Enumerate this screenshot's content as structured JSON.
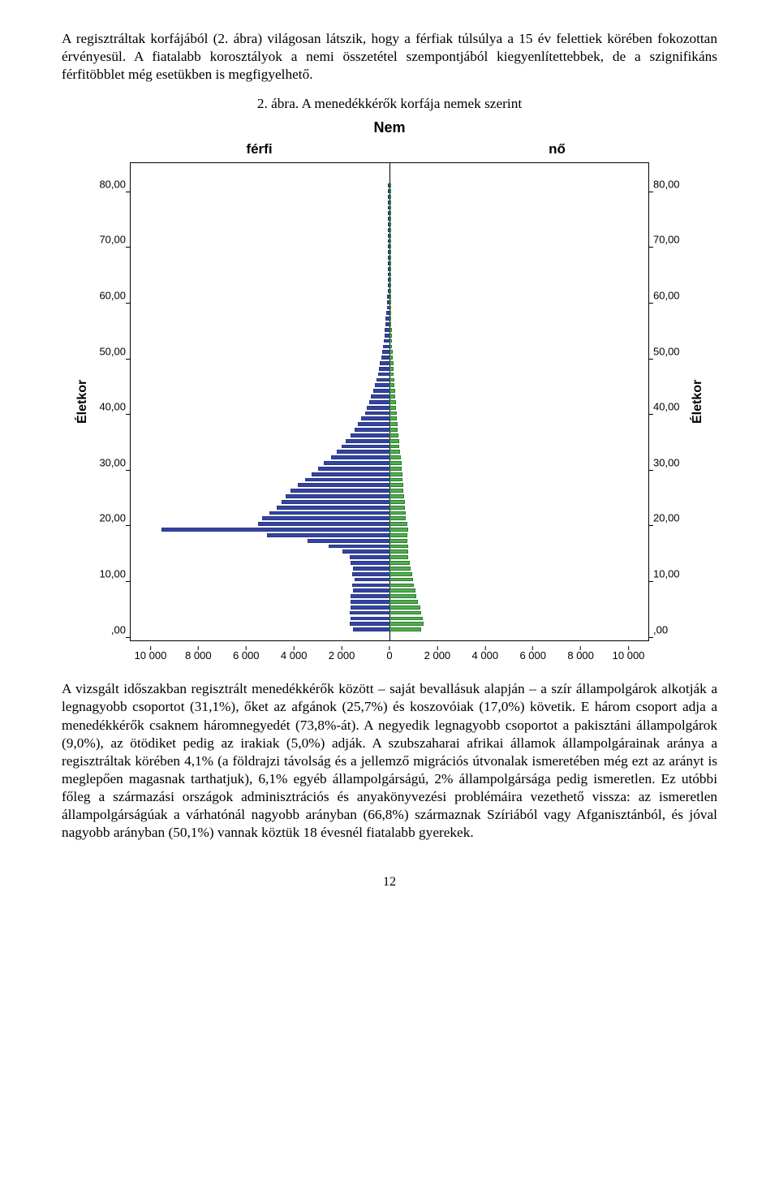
{
  "para1": "A regisztráltak korfájából (2. ábra) világosan látszik, hogy a férfiak túlsúlya a 15 év felettiek körében fokozottan érvényesül. A fiatalabb korosztályok a nemi összetétel szempontjából kiegyenlítettebbek, de a szignifikáns férfitöbblet még esetükben is megfigyelhető.",
  "caption": "2. ábra. A menedékkérők korfája nemek szerint",
  "chart": {
    "type": "paired-bar-age-pyramid",
    "super_title": "Nem",
    "head_left": "férfi",
    "head_right": "nő",
    "ylabel": "Életkor",
    "ylim_min": -2,
    "ylim_max": 84,
    "yticks": [
      {
        "v": 0,
        "label": ",00"
      },
      {
        "v": 10,
        "label": "10,00"
      },
      {
        "v": 20,
        "label": "20,00"
      },
      {
        "v": 30,
        "label": "30,00"
      },
      {
        "v": 40,
        "label": "40,00"
      },
      {
        "v": 50,
        "label": "50,00"
      },
      {
        "v": 60,
        "label": "60,00"
      },
      {
        "v": 70,
        "label": "70,00"
      },
      {
        "v": 80,
        "label": "80,00"
      }
    ],
    "x_max": 11000,
    "xticks": [
      {
        "v": -10000,
        "label": "10 000"
      },
      {
        "v": -8000,
        "label": "8 000"
      },
      {
        "v": -6000,
        "label": "6 000"
      },
      {
        "v": -4000,
        "label": "4 000"
      },
      {
        "v": -2000,
        "label": "2 000"
      },
      {
        "v": 0,
        "label": "0"
      },
      {
        "v": 2000,
        "label": "2 000"
      },
      {
        "v": 4000,
        "label": "4 000"
      },
      {
        "v": 6000,
        "label": "6 000"
      },
      {
        "v": 8000,
        "label": "8 000"
      },
      {
        "v": 10000,
        "label": "10 000"
      }
    ],
    "male_color": "#3344a7",
    "male_border": "#2a367f",
    "female_color": "#4fae4f",
    "female_border": "#2e7d2e",
    "background_color": "#ffffff",
    "axis_color": "#000000",
    "ages": [
      {
        "age": 0,
        "m": 1550,
        "f": 1350
      },
      {
        "age": 1,
        "m": 1700,
        "f": 1450
      },
      {
        "age": 2,
        "m": 1650,
        "f": 1400
      },
      {
        "age": 3,
        "m": 1700,
        "f": 1350
      },
      {
        "age": 4,
        "m": 1650,
        "f": 1300
      },
      {
        "age": 5,
        "m": 1650,
        "f": 1200
      },
      {
        "age": 6,
        "m": 1650,
        "f": 1150
      },
      {
        "age": 7,
        "m": 1550,
        "f": 1100
      },
      {
        "age": 8,
        "m": 1600,
        "f": 1050
      },
      {
        "age": 9,
        "m": 1500,
        "f": 1000
      },
      {
        "age": 10,
        "m": 1600,
        "f": 950
      },
      {
        "age": 11,
        "m": 1550,
        "f": 900
      },
      {
        "age": 12,
        "m": 1650,
        "f": 850
      },
      {
        "age": 13,
        "m": 1700,
        "f": 800
      },
      {
        "age": 14,
        "m": 2000,
        "f": 800
      },
      {
        "age": 15,
        "m": 2600,
        "f": 800
      },
      {
        "age": 16,
        "m": 3500,
        "f": 750
      },
      {
        "age": 17,
        "m": 5200,
        "f": 750
      },
      {
        "age": 18,
        "m": 9700,
        "f": 800
      },
      {
        "age": 19,
        "m": 5600,
        "f": 750
      },
      {
        "age": 20,
        "m": 5400,
        "f": 700
      },
      {
        "age": 21,
        "m": 5100,
        "f": 700
      },
      {
        "age": 22,
        "m": 4800,
        "f": 650
      },
      {
        "age": 23,
        "m": 4600,
        "f": 650
      },
      {
        "age": 24,
        "m": 4400,
        "f": 620
      },
      {
        "age": 25,
        "m": 4200,
        "f": 600
      },
      {
        "age": 26,
        "m": 3900,
        "f": 570
      },
      {
        "age": 27,
        "m": 3600,
        "f": 560
      },
      {
        "age": 28,
        "m": 3300,
        "f": 540
      },
      {
        "age": 29,
        "m": 3050,
        "f": 520
      },
      {
        "age": 30,
        "m": 2800,
        "f": 500
      },
      {
        "age": 31,
        "m": 2500,
        "f": 470
      },
      {
        "age": 32,
        "m": 2250,
        "f": 450
      },
      {
        "age": 33,
        "m": 2050,
        "f": 430
      },
      {
        "age": 34,
        "m": 1850,
        "f": 400
      },
      {
        "age": 35,
        "m": 1650,
        "f": 380
      },
      {
        "age": 36,
        "m": 1500,
        "f": 360
      },
      {
        "age": 37,
        "m": 1350,
        "f": 340
      },
      {
        "age": 38,
        "m": 1200,
        "f": 320
      },
      {
        "age": 39,
        "m": 1050,
        "f": 300
      },
      {
        "age": 40,
        "m": 950,
        "f": 290
      },
      {
        "age": 41,
        "m": 850,
        "f": 270
      },
      {
        "age": 42,
        "m": 780,
        "f": 250
      },
      {
        "age": 43,
        "m": 700,
        "f": 230
      },
      {
        "age": 44,
        "m": 620,
        "f": 210
      },
      {
        "age": 45,
        "m": 560,
        "f": 200
      },
      {
        "age": 46,
        "m": 500,
        "f": 180
      },
      {
        "age": 47,
        "m": 450,
        "f": 170
      },
      {
        "age": 48,
        "m": 400,
        "f": 160
      },
      {
        "age": 49,
        "m": 360,
        "f": 150
      },
      {
        "age": 50,
        "m": 320,
        "f": 140
      },
      {
        "age": 51,
        "m": 280,
        "f": 120
      },
      {
        "age": 52,
        "m": 250,
        "f": 110
      },
      {
        "age": 53,
        "m": 220,
        "f": 100
      },
      {
        "age": 54,
        "m": 200,
        "f": 90
      },
      {
        "age": 55,
        "m": 180,
        "f": 85
      },
      {
        "age": 56,
        "m": 160,
        "f": 75
      },
      {
        "age": 57,
        "m": 140,
        "f": 70
      },
      {
        "age": 58,
        "m": 120,
        "f": 60
      },
      {
        "age": 59,
        "m": 110,
        "f": 55
      },
      {
        "age": 60,
        "m": 95,
        "f": 50
      },
      {
        "age": 61,
        "m": 85,
        "f": 45
      },
      {
        "age": 62,
        "m": 75,
        "f": 42
      },
      {
        "age": 63,
        "m": 70,
        "f": 38
      },
      {
        "age": 64,
        "m": 60,
        "f": 34
      },
      {
        "age": 65,
        "m": 55,
        "f": 30
      },
      {
        "age": 66,
        "m": 45,
        "f": 26
      },
      {
        "age": 67,
        "m": 40,
        "f": 24
      },
      {
        "age": 68,
        "m": 38,
        "f": 22
      },
      {
        "age": 69,
        "m": 34,
        "f": 20
      },
      {
        "age": 70,
        "m": 30,
        "f": 18
      },
      {
        "age": 71,
        "m": 28,
        "f": 17
      },
      {
        "age": 72,
        "m": 26,
        "f": 16
      },
      {
        "age": 73,
        "m": 24,
        "f": 15
      },
      {
        "age": 74,
        "m": 22,
        "f": 14
      },
      {
        "age": 75,
        "m": 20,
        "f": 13
      },
      {
        "age": 76,
        "m": 18,
        "f": 12
      },
      {
        "age": 77,
        "m": 17,
        "f": 11
      },
      {
        "age": 78,
        "m": 15,
        "f": 10
      },
      {
        "age": 79,
        "m": 14,
        "f": 9
      },
      {
        "age": 80,
        "m": 12,
        "f": 8
      }
    ]
  },
  "para2": "A vizsgált időszakban regisztrált menedékkérők között – saját bevallásuk alapján – a szír állampolgárok alkotják a legnagyobb csoportot (31,1%), őket az afgánok (25,7%) és koszovóiak (17,0%) követik. E három csoport adja a menedékkérők csaknem háromnegyedét (73,8%-át). A negyedik legnagyobb csoportot a pakisztáni állampolgárok (9,0%), az ötödiket pedig az irakiak (5,0%) adják. A szubszaharai afrikai államok állampolgárainak aránya a regisztráltak körében 4,1% (a földrajzi távolság és a jellemző migrációs útvonalak ismeretében még ezt az arányt is meglepően magasnak tarthatjuk), 6,1% egyéb állampolgárságú, 2% állampolgársága pedig ismeretlen. Ez utóbbi főleg a származási országok adminisztrációs és anyakönyvezési problémáira vezethető vissza: az ismeretlen állampolgárságúak a várhatónál nagyobb arányban (66,8%) származnak Szíriából vagy Afganisztánból, és jóval nagyobb arányban (50,1%) vannak köztük 18 évesnél fiatalabb gyerekek.",
  "pagenum": "12"
}
